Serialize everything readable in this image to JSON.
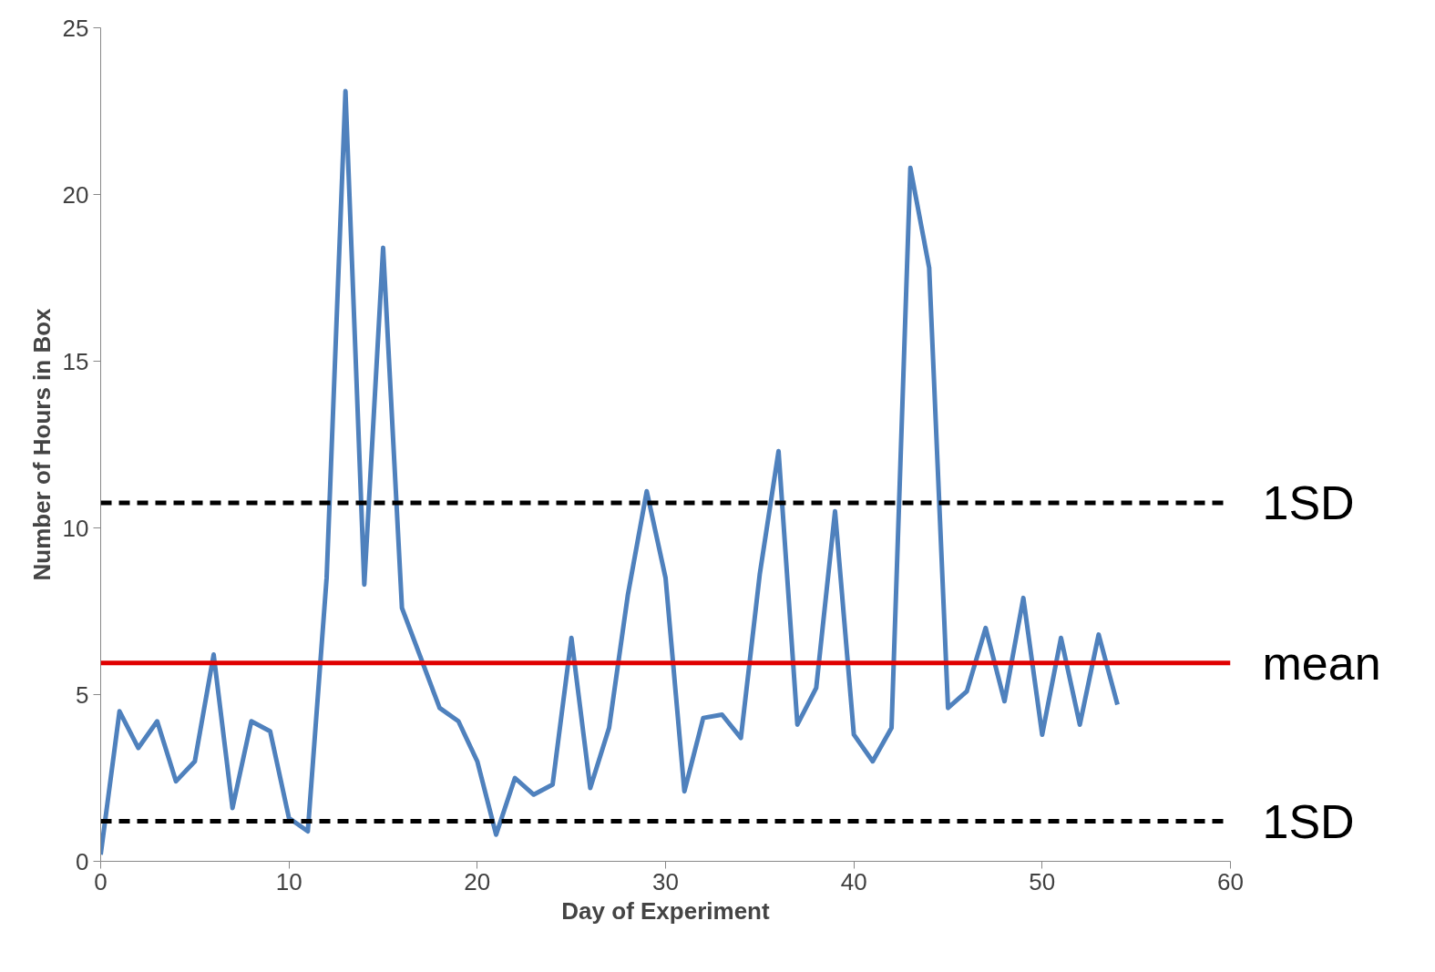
{
  "chart_data": {
    "type": "line",
    "xlabel": "Day of Experiment",
    "ylabel": "Number of Hours in Box",
    "x": [
      0,
      1,
      2,
      3,
      4,
      5,
      6,
      7,
      8,
      9,
      10,
      11,
      12,
      13,
      14,
      15,
      16,
      17,
      18,
      19,
      20,
      21,
      22,
      23,
      24,
      25,
      26,
      27,
      28,
      29,
      30,
      31,
      32,
      33,
      34,
      35,
      36,
      37,
      38,
      39,
      40,
      41,
      42,
      43,
      44,
      45,
      46,
      47,
      48,
      49,
      50,
      51,
      52,
      53,
      54
    ],
    "series": [
      {
        "color": "#4f81bd",
        "values": [
          0.2,
          4.5,
          3.4,
          4.2,
          2.4,
          3.0,
          6.2,
          1.6,
          4.2,
          3.9,
          1.3,
          0.9,
          8.5,
          23.1,
          8.3,
          18.4,
          7.6,
          6.1,
          4.6,
          4.2,
          3.0,
          0.8,
          2.5,
          2.0,
          2.3,
          6.7,
          2.2,
          4.0,
          8.0,
          11.1,
          8.5,
          2.1,
          4.3,
          4.4,
          3.7,
          8.6,
          12.3,
          4.1,
          5.2,
          10.5,
          3.8,
          3.0,
          4.0,
          20.8,
          17.8,
          4.6,
          5.1,
          7.0,
          4.8,
          7.9,
          3.8,
          6.7,
          4.1,
          6.8,
          4.7
        ]
      }
    ],
    "xlim": [
      0,
      60
    ],
    "xticks": [
      0,
      10,
      20,
      30,
      40,
      50,
      60
    ],
    "ylim": [
      0,
      25
    ],
    "yticks": [
      0,
      5,
      10,
      15,
      20,
      25
    ],
    "grid": false,
    "marker": "none",
    "line_style": "solid",
    "ref_lines": [
      {
        "axis": "y",
        "value": 10.75,
        "label": "1SD",
        "color": "#000000",
        "line_style": "dashed"
      },
      {
        "axis": "y",
        "value": 5.95,
        "label": "mean",
        "color": "#e00000",
        "line_style": "solid"
      },
      {
        "axis": "y",
        "value": 1.2,
        "label": "1SD",
        "color": "#000000",
        "line_style": "dashed"
      }
    ]
  }
}
